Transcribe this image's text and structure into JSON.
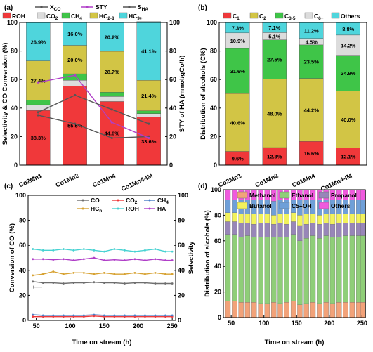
{
  "chart_data": [
    {
      "panel": "(a)",
      "type": "bar",
      "stacked": true,
      "categories": [
        "Co2Mn1",
        "Co1Mn2",
        "Co1Mn4",
        "Co1Mn4-IM"
      ],
      "ylabel": "Selectivity & CO Conversion (%)",
      "y2label": "STY of HA (mmol/gCo/h)",
      "ylim": [
        0,
        100
      ],
      "y2lim": [
        0,
        100
      ],
      "series": [
        {
          "name": "ROH",
          "color": "#f0383a",
          "values": [
            38.3,
            55.5,
            44.6,
            33.6
          ]
        },
        {
          "name": "CO2",
          "color": "#dcdcdc",
          "values": [
            4.0,
            4.0,
            3.5,
            2.5
          ]
        },
        {
          "name": "CH4",
          "color": "#3fc548",
          "values": [
            3.4,
            4.5,
            3.0,
            2.0
          ]
        },
        {
          "name": "HC2-8",
          "color": "#d2c545",
          "values": [
            27.4,
            20.0,
            28.7,
            21.4
          ]
        },
        {
          "name": "HC9+",
          "color": "#4fd5dc",
          "values": [
            26.9,
            16.0,
            20.2,
            41.1
          ]
        }
      ],
      "bar_labels": [
        [
          "38.3%",
          "27.4%",
          "26.9%"
        ],
        [
          "55.5%",
          "20.0%",
          "16.0%"
        ],
        [
          "44.6%",
          "28.7%",
          "20.2%"
        ],
        [
          "33.6%",
          "21.4%",
          "41.1%"
        ]
      ],
      "lines": [
        {
          "name": "XCO",
          "color": "#555555",
          "axis": "y",
          "values": [
            35,
            29,
            19,
            20
          ]
        },
        {
          "name": "STY",
          "color": "#b03fc8",
          "axis": "y2",
          "values": [
            58,
            63,
            30,
            19
          ]
        },
        {
          "name": "SHA",
          "color": "#555555",
          "axis": "y",
          "values": [
            37,
            49,
            39,
            29
          ]
        }
      ],
      "legend_top": [
        {
          "name": "XCO",
          "text": "X",
          "sub": "CO",
          "color": "#555555"
        },
        {
          "name": "STY",
          "text": "STY",
          "sub": "",
          "color": "#b03fc8"
        },
        {
          "name": "SHA",
          "text": "S",
          "sub": "HA",
          "color": "#555555"
        }
      ]
    },
    {
      "panel": "(b)",
      "type": "bar",
      "stacked": true,
      "categories": [
        "Co2Mn1",
        "Co1Mn2",
        "Co1Mn4",
        "Co1Mn4-IM"
      ],
      "ylabel": "Distribution of alcohols (C%)",
      "ylim": [
        0,
        100
      ],
      "series": [
        {
          "name": "C1",
          "color": "#f0383a",
          "values": [
            9.6,
            12.3,
            16.6,
            12.1
          ]
        },
        {
          "name": "C2",
          "color": "#d2c545",
          "values": [
            40.6,
            48.0,
            44.2,
            40.0
          ]
        },
        {
          "name": "C3-5",
          "color": "#3fc548",
          "values": [
            31.6,
            27.5,
            23.5,
            24.9
          ]
        },
        {
          "name": "C6+",
          "color": "#dcdcdc",
          "values": [
            10.9,
            5.1,
            4.5,
            14.2
          ]
        },
        {
          "name": "Others",
          "color": "#4fd5dc",
          "values": [
            7.3,
            7.1,
            11.2,
            8.8
          ]
        }
      ],
      "bar_labels": [
        [
          "9.6%",
          "40.6%",
          "31.6%",
          "10.9%",
          "7.3%"
        ],
        [
          "12.3%",
          "48.0%",
          "27.5%",
          "5.1%",
          "7.1%"
        ],
        [
          "16.6%",
          "44.2%",
          "23.5%",
          "4.5%",
          "11.2%"
        ],
        [
          "12.1%",
          "40.0%",
          "24.9%",
          "14.2%",
          "8.8%"
        ]
      ]
    },
    {
      "panel": "(c)",
      "type": "line",
      "xlabel": "Time on stream (h)",
      "ylabel": "Conversion of CO (%)",
      "y2label": "Selectivity",
      "xlim": [
        38,
        255
      ],
      "ylim": [
        0,
        100
      ],
      "y2lim": [
        0,
        100
      ],
      "x": [
        45,
        60,
        75,
        90,
        105,
        120,
        135,
        150,
        165,
        180,
        195,
        210,
        225,
        240,
        250
      ],
      "series": [
        {
          "name": "CO",
          "color": "#6e6e6e",
          "axis": "y",
          "values": [
            31,
            30,
            30,
            29.5,
            30,
            30,
            30.5,
            30,
            30,
            29.5,
            30,
            30,
            29.5,
            29.5,
            29.5
          ]
        },
        {
          "name": "CO2",
          "color": "#f0383a",
          "axis": "y2",
          "values": [
            3,
            3,
            3,
            3,
            3,
            3,
            3.5,
            3,
            3,
            3,
            3,
            3,
            3,
            3,
            3
          ]
        },
        {
          "name": "CH4",
          "color": "#4a7ec8",
          "axis": "y2",
          "values": [
            4.5,
            4,
            4,
            4,
            4,
            4,
            4.5,
            4,
            4,
            4,
            4,
            4,
            4,
            4,
            4
          ]
        },
        {
          "name": "HCn",
          "color": "#d7a232",
          "axis": "y2",
          "values": [
            36,
            37,
            39,
            37,
            38,
            38,
            37,
            38,
            37,
            37,
            38,
            37,
            38,
            37,
            37
          ]
        },
        {
          "name": "ROH",
          "color": "#48d2d2",
          "axis": "y2",
          "values": [
            57,
            56,
            56,
            57,
            56,
            57,
            56,
            55,
            57,
            56,
            55,
            56,
            57,
            55,
            55
          ]
        },
        {
          "name": "HA",
          "color": "#b03fc8",
          "axis": "y2",
          "values": [
            49,
            49,
            48.5,
            49,
            48,
            49,
            50,
            48,
            48.5,
            48,
            49,
            48,
            49,
            48,
            48
          ]
        }
      ],
      "legend": [
        {
          "name": "CO",
          "text": "CO",
          "sub": ""
        },
        {
          "name": "CO2",
          "text": "CO",
          "sub": "2"
        },
        {
          "name": "CH4",
          "text": "CH",
          "sub": "4"
        },
        {
          "name": "HCn",
          "text": "HC",
          "sub": "n"
        },
        {
          "name": "ROH",
          "text": "ROH",
          "sub": ""
        },
        {
          "name": "HA",
          "text": "HA",
          "sub": ""
        }
      ]
    },
    {
      "panel": "(d)",
      "type": "bar",
      "stacked": true,
      "xlabel": "Time on stream (h)",
      "ylabel": "Distribution of alcohols (%)",
      "xlim": [
        38,
        255
      ],
      "ylim": [
        0,
        100
      ],
      "x": [
        45,
        55,
        65,
        75,
        85,
        95,
        105,
        115,
        125,
        135,
        145,
        155,
        165,
        175,
        185,
        195,
        205,
        215,
        225,
        235,
        245,
        252
      ],
      "series": [
        {
          "name": "Methanol",
          "color": "#f2a279",
          "values": [
            13,
            13,
            12,
            12,
            12,
            11,
            11,
            12,
            11,
            12,
            13,
            10,
            11,
            12,
            11,
            12,
            11,
            12,
            12,
            12,
            12,
            12
          ]
        },
        {
          "name": "Ethanol",
          "color": "#8fce78",
          "values": [
            52,
            52,
            51,
            52,
            51,
            52,
            52,
            51,
            52,
            51,
            52,
            50,
            51,
            52,
            51,
            52,
            52,
            51,
            52,
            52,
            52,
            52
          ]
        },
        {
          "name": "Propanol",
          "color": "#9886b8",
          "values": [
            10,
            10,
            11,
            10,
            10,
            11,
            11,
            10,
            11,
            10,
            10,
            12,
            11,
            10,
            11,
            10,
            10,
            11,
            10,
            10,
            10,
            10
          ]
        },
        {
          "name": "Butanol",
          "color": "#f2f25c",
          "values": [
            7,
            7,
            7,
            7,
            8,
            7,
            7,
            7,
            7,
            8,
            7,
            8,
            8,
            7,
            7,
            7,
            8,
            7,
            7,
            7,
            7,
            7
          ]
        },
        {
          "name": "C5+OH",
          "color": "#6f9fd8",
          "values": [
            10,
            10,
            11,
            11,
            11,
            11,
            11,
            11,
            11,
            11,
            10,
            12,
            11,
            11,
            12,
            11,
            11,
            11,
            11,
            11,
            11,
            11
          ]
        },
        {
          "name": "Others",
          "color": "#f05ade",
          "values": [
            8,
            8,
            8,
            8,
            8,
            8,
            8,
            9,
            8,
            8,
            8,
            8,
            8,
            8,
            8,
            8,
            8,
            8,
            8,
            8,
            8,
            8
          ]
        }
      ],
      "legend": [
        {
          "name": "Methanol",
          "text": "Methanol",
          "sub": ""
        },
        {
          "name": "Ethanol",
          "text": "Ethanol",
          "sub": ""
        },
        {
          "name": "Propanol",
          "text": "Propanol",
          "sub": ""
        },
        {
          "name": "Butanol",
          "text": "Butanol",
          "sub": ""
        },
        {
          "name": "C5+OH",
          "text": "C5+OH",
          "sub": ""
        },
        {
          "name": "Others",
          "text": "Others",
          "sub": ""
        }
      ]
    }
  ],
  "legend_a": [
    {
      "name": "ROH",
      "text": "ROH",
      "sub": ""
    },
    {
      "name": "CO2",
      "text": "CO",
      "sub": "2"
    },
    {
      "name": "CH4",
      "text": "CH",
      "sub": "4"
    },
    {
      "name": "HC2-8",
      "text": "HC",
      "sub": "2-8"
    },
    {
      "name": "HC9+",
      "text": "HC",
      "sub": "9+"
    }
  ],
  "legend_b": [
    {
      "name": "C1",
      "text": "C",
      "sub": "1"
    },
    {
      "name": "C2",
      "text": "C",
      "sub": "2"
    },
    {
      "name": "C3-5",
      "text": "C",
      "sub": "3-5"
    },
    {
      "name": "C6+",
      "text": "C",
      "sub": "6+"
    },
    {
      "name": "Others",
      "text": "Others",
      "sub": ""
    }
  ],
  "ticks_y": [
    "0",
    "20",
    "40",
    "60",
    "80",
    "100"
  ],
  "ticks_x_time": [
    "50",
    "100",
    "150",
    "200",
    "250"
  ]
}
